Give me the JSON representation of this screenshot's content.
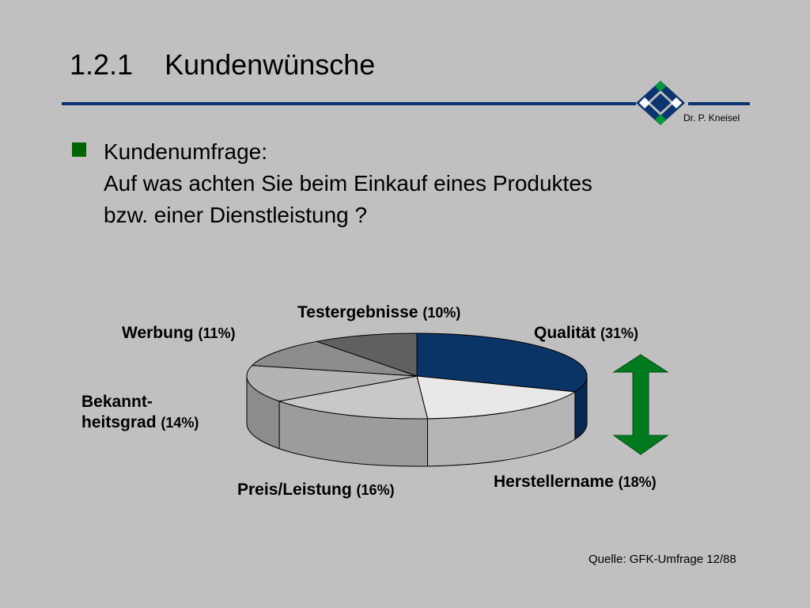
{
  "slide": {
    "title": "1.2.1    Kundenwünsche",
    "author": "Dr. P. Kneisel",
    "bullet": {
      "line1": "Kundenumfrage:",
      "line2": "Auf was achten Sie beim Einkauf eines Produktes",
      "line3": "bzw. einer Dienstleistung ?"
    },
    "source": "Quelle: GFK-Umfrage 12/88"
  },
  "colors": {
    "background": "#c0c0c0",
    "accent_blue": "#0d3470",
    "bullet_green": "#006400",
    "arrow_green": "#007a1e"
  },
  "chart_data": {
    "type": "pie",
    "title": "",
    "slices": [
      {
        "label": "Qualität",
        "value": 31,
        "value_label": "(31%)",
        "color": "#0a3366"
      },
      {
        "label": "Herstellername",
        "value": 18,
        "value_label": "(18%)",
        "color": "#e8e8e8"
      },
      {
        "label": "Preis/Leistung",
        "value": 16,
        "value_label": "(16%)",
        "color": "#c8c8c8"
      },
      {
        "label": "Bekannt-heitsgrad",
        "label_line1": "Bekannt-",
        "label_line2": "heitsgrad",
        "value": 14,
        "value_label": "(14%)",
        "color": "#b4b4b4"
      },
      {
        "label": "Werbung",
        "value": 11,
        "value_label": "(11%)",
        "color": "#8c8c8c"
      },
      {
        "label": "Testergebnisse",
        "value": 10,
        "value_label": "(10%)",
        "color": "#606060"
      }
    ],
    "style": "3d-tilted",
    "annotation": "double-headed arrow (green)"
  }
}
